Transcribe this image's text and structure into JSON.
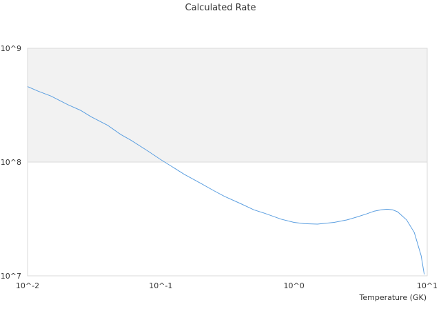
{
  "chart_data": {
    "type": "line",
    "title": "Calculated Rate",
    "xlabel": "Temperature (GK)",
    "ylabel": "",
    "x_scale": "log",
    "y_scale": "log",
    "xlim": [
      0.01,
      10
    ],
    "ylim": [
      10000000,
      1000000000
    ],
    "x_tick_labels": [
      "10^-2",
      "10^-1",
      "10^0",
      "10^1"
    ],
    "y_tick_labels": [
      "10^7",
      "10^8",
      "10^9"
    ],
    "shaded_band": {
      "from": 100000000,
      "to": 1000000000,
      "color": "#f2f2f2"
    },
    "grid": true,
    "series": [
      {
        "color": "#5a9ee0",
        "x": [
          0.01,
          0.012,
          0.015,
          0.02,
          0.025,
          0.03,
          0.04,
          0.05,
          0.06,
          0.08,
          0.1,
          0.12,
          0.15,
          0.2,
          0.25,
          0.3,
          0.4,
          0.5,
          0.6,
          0.8,
          1.0,
          1.2,
          1.5,
          2.0,
          2.5,
          3.0,
          3.5,
          4.0,
          4.5,
          5.0,
          5.5,
          6.0,
          7.0,
          8.0,
          9.0,
          9.5
        ],
        "y": [
          460000000,
          420000000,
          380000000,
          320000000,
          285000000,
          250000000,
          210000000,
          175000000,
          155000000,
          125000000,
          105000000,
          92000000,
          78000000,
          65000000,
          56000000,
          50000000,
          43000000,
          38000000,
          35500000,
          31500000,
          29500000,
          28700000,
          28500000,
          29500000,
          31000000,
          33000000,
          35000000,
          37000000,
          38000000,
          38500000,
          38000000,
          36500000,
          31000000,
          24000000,
          15000000,
          10300000
        ]
      }
    ]
  }
}
